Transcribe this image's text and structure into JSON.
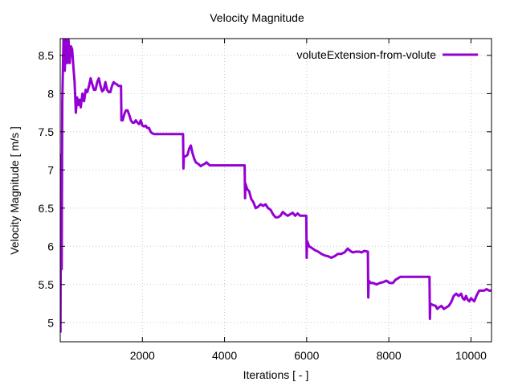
{
  "chart_data": {
    "type": "line",
    "title": "Velocity Magnitude",
    "xlabel": "Iterations [ - ]",
    "ylabel": "Velocity Magnitude [ m/s ]",
    "xlim": [
      0,
      10500
    ],
    "ylim": [
      4.75,
      8.72
    ],
    "xticks": [
      2000,
      4000,
      6000,
      8000,
      10000
    ],
    "xtick_labels": [
      "2000",
      "4000",
      "6000",
      "8000",
      "10000"
    ],
    "yticks": [
      5,
      5.5,
      6,
      6.5,
      7,
      7.5,
      8,
      8.5
    ],
    "ytick_labels": [
      "5",
      "5.5",
      "6",
      "6.5",
      "7",
      "7.5",
      "8",
      "8.5"
    ],
    "grid": true,
    "legend_position": "top-right",
    "series": [
      {
        "name": "voluteExtension-from-volute",
        "color": "#9400d3",
        "points": [
          [
            5,
            4.87
          ],
          [
            20,
            7.2
          ],
          [
            35,
            5.7
          ],
          [
            50,
            7.9
          ],
          [
            80,
            8.72
          ],
          [
            110,
            8.3
          ],
          [
            140,
            8.72
          ],
          [
            170,
            8.4
          ],
          [
            200,
            8.72
          ],
          [
            230,
            8.4
          ],
          [
            260,
            8.62
          ],
          [
            290,
            8.58
          ],
          [
            320,
            8.35
          ],
          [
            350,
            8.15
          ],
          [
            380,
            7.75
          ],
          [
            410,
            7.95
          ],
          [
            440,
            7.85
          ],
          [
            470,
            7.92
          ],
          [
            500,
            7.82
          ],
          [
            540,
            8.0
          ],
          [
            580,
            7.9
          ],
          [
            620,
            8.05
          ],
          [
            660,
            8.02
          ],
          [
            700,
            8.1
          ],
          [
            740,
            8.2
          ],
          [
            780,
            8.12
          ],
          [
            820,
            8.05
          ],
          [
            860,
            8.05
          ],
          [
            900,
            8.15
          ],
          [
            940,
            8.2
          ],
          [
            980,
            8.1
          ],
          [
            1020,
            8.03
          ],
          [
            1060,
            8.05
          ],
          [
            1100,
            8.15
          ],
          [
            1140,
            8.05
          ],
          [
            1180,
            8.02
          ],
          [
            1220,
            8.02
          ],
          [
            1260,
            8.1
          ],
          [
            1300,
            8.15
          ],
          [
            1340,
            8.13
          ],
          [
            1380,
            8.12
          ],
          [
            1420,
            8.1
          ],
          [
            1480,
            8.1
          ],
          [
            1490,
            7.65
          ],
          [
            1520,
            7.65
          ],
          [
            1560,
            7.73
          ],
          [
            1600,
            7.78
          ],
          [
            1640,
            7.78
          ],
          [
            1680,
            7.72
          ],
          [
            1720,
            7.65
          ],
          [
            1760,
            7.62
          ],
          [
            1800,
            7.62
          ],
          [
            1840,
            7.65
          ],
          [
            1880,
            7.62
          ],
          [
            1920,
            7.6
          ],
          [
            1960,
            7.65
          ],
          [
            2000,
            7.58
          ],
          [
            2040,
            7.57
          ],
          [
            2080,
            7.58
          ],
          [
            2120,
            7.55
          ],
          [
            2160,
            7.55
          ],
          [
            2200,
            7.5
          ],
          [
            2240,
            7.48
          ],
          [
            2280,
            7.47
          ],
          [
            2990,
            7.47
          ],
          [
            3000,
            7.02
          ],
          [
            3010,
            7.18
          ],
          [
            3060,
            7.18
          ],
          [
            3100,
            7.2
          ],
          [
            3140,
            7.28
          ],
          [
            3180,
            7.32
          ],
          [
            3220,
            7.22
          ],
          [
            3260,
            7.15
          ],
          [
            3300,
            7.1
          ],
          [
            3360,
            7.08
          ],
          [
            3420,
            7.05
          ],
          [
            3480,
            7.07
          ],
          [
            3520,
            7.08
          ],
          [
            3560,
            7.1
          ],
          [
            3600,
            7.08
          ],
          [
            3640,
            7.06
          ],
          [
            4490,
            7.06
          ],
          [
            4500,
            6.63
          ],
          [
            4510,
            6.82
          ],
          [
            4550,
            6.75
          ],
          [
            4600,
            6.72
          ],
          [
            4650,
            6.62
          ],
          [
            4700,
            6.58
          ],
          [
            4760,
            6.5
          ],
          [
            4820,
            6.52
          ],
          [
            4880,
            6.55
          ],
          [
            4940,
            6.53
          ],
          [
            5000,
            6.55
          ],
          [
            5060,
            6.5
          ],
          [
            5120,
            6.48
          ],
          [
            5180,
            6.42
          ],
          [
            5240,
            6.38
          ],
          [
            5300,
            6.38
          ],
          [
            5360,
            6.4
          ],
          [
            5420,
            6.45
          ],
          [
            5480,
            6.42
          ],
          [
            5540,
            6.4
          ],
          [
            5600,
            6.42
          ],
          [
            5660,
            6.44
          ],
          [
            5720,
            6.4
          ],
          [
            5780,
            6.43
          ],
          [
            5840,
            6.4
          ],
          [
            5900,
            6.4
          ],
          [
            5990,
            6.4
          ],
          [
            6000,
            5.85
          ],
          [
            6010,
            6.07
          ],
          [
            6060,
            6.0
          ],
          [
            6120,
            5.98
          ],
          [
            6200,
            5.95
          ],
          [
            6280,
            5.93
          ],
          [
            6360,
            5.9
          ],
          [
            6440,
            5.88
          ],
          [
            6520,
            5.87
          ],
          [
            6600,
            5.85
          ],
          [
            6680,
            5.87
          ],
          [
            6760,
            5.9
          ],
          [
            6840,
            5.9
          ],
          [
            6920,
            5.92
          ],
          [
            7000,
            5.97
          ],
          [
            7060,
            5.94
          ],
          [
            7120,
            5.92
          ],
          [
            7200,
            5.93
          ],
          [
            7280,
            5.93
          ],
          [
            7340,
            5.92
          ],
          [
            7400,
            5.94
          ],
          [
            7490,
            5.93
          ],
          [
            7500,
            5.33
          ],
          [
            7510,
            5.55
          ],
          [
            7560,
            5.52
          ],
          [
            7620,
            5.52
          ],
          [
            7700,
            5.5
          ],
          [
            7780,
            5.52
          ],
          [
            7860,
            5.53
          ],
          [
            7940,
            5.55
          ],
          [
            8020,
            5.52
          ],
          [
            8100,
            5.52
          ],
          [
            8160,
            5.56
          ],
          [
            8220,
            5.58
          ],
          [
            8280,
            5.6
          ],
          [
            8990,
            5.6
          ],
          [
            9000,
            5.05
          ],
          [
            9010,
            5.25
          ],
          [
            9080,
            5.23
          ],
          [
            9140,
            5.22
          ],
          [
            9180,
            5.18
          ],
          [
            9220,
            5.2
          ],
          [
            9280,
            5.22
          ],
          [
            9340,
            5.18
          ],
          [
            9400,
            5.2
          ],
          [
            9460,
            5.22
          ],
          [
            9520,
            5.27
          ],
          [
            9580,
            5.35
          ],
          [
            9640,
            5.38
          ],
          [
            9700,
            5.35
          ],
          [
            9760,
            5.38
          ],
          [
            9800,
            5.32
          ],
          [
            9840,
            5.3
          ],
          [
            9880,
            5.35
          ],
          [
            9920,
            5.3
          ],
          [
            9960,
            5.28
          ],
          [
            10000,
            5.32
          ],
          [
            10040,
            5.3
          ],
          [
            10080,
            5.28
          ],
          [
            10140,
            5.36
          ],
          [
            10200,
            5.42
          ],
          [
            10260,
            5.42
          ],
          [
            10320,
            5.42
          ],
          [
            10380,
            5.44
          ],
          [
            10440,
            5.42
          ],
          [
            10500,
            5.42
          ]
        ]
      }
    ]
  }
}
